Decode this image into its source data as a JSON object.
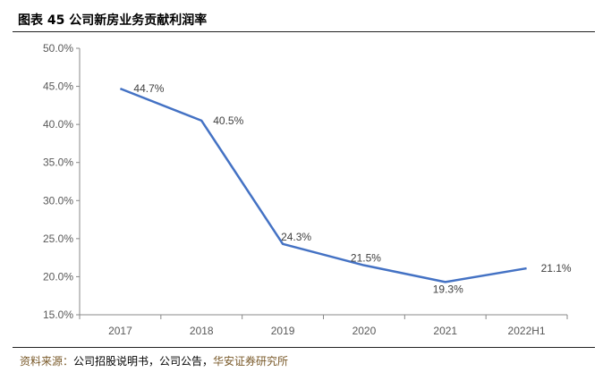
{
  "title": "图表 45  公司新房业务贡献利润率",
  "source": {
    "label": "资料来源：",
    "text": "公司招股说明书，公司公告，",
    "org": "华安证券研究所"
  },
  "chart_data": {
    "type": "line",
    "title": "公司新房业务贡献利润率",
    "categories": [
      "2017",
      "2018",
      "2019",
      "2020",
      "2021",
      "2022H1"
    ],
    "series": [
      {
        "name": "新房业务贡献利润率",
        "values": [
          44.7,
          40.5,
          24.3,
          21.5,
          19.3,
          21.1
        ],
        "color": "#4472C4"
      }
    ],
    "data_labels": [
      "44.7%",
      "40.5%",
      "24.3%",
      "21.5%",
      "19.3%",
      "21.1%"
    ],
    "yticks": [
      "15.0%",
      "20.0%",
      "25.0%",
      "30.0%",
      "35.0%",
      "40.0%",
      "45.0%",
      "50.0%"
    ],
    "ylim": [
      15,
      50
    ],
    "xlabel": "",
    "ylabel": "",
    "grid": false,
    "legend": "none"
  }
}
